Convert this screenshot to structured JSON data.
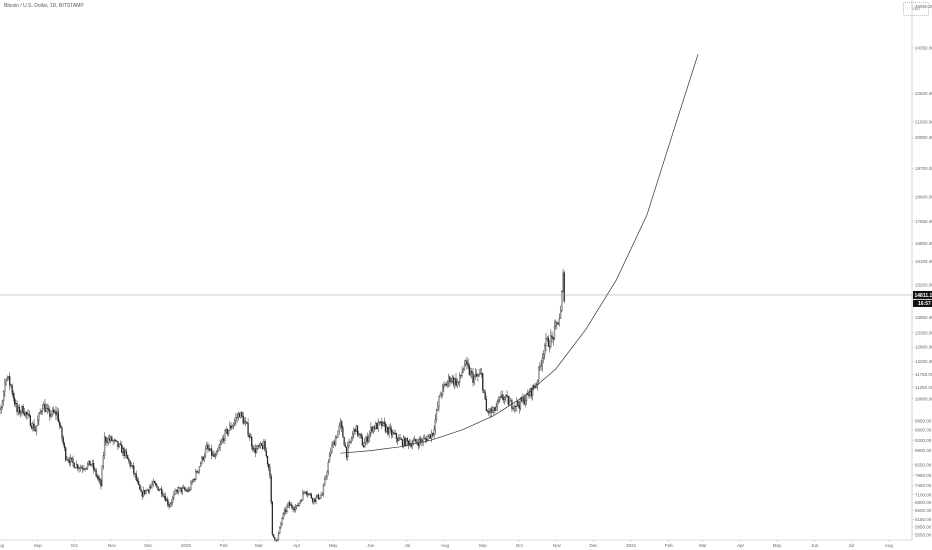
{
  "header": {
    "title": "Bitcoin / U.S. Dollar, 1D, BITSTAMP",
    "toolbox_label": "USD"
  },
  "colors": {
    "candle": "#222222",
    "curve": "#333333",
    "price_line": "#999999",
    "axis_line": "#bbbbbb",
    "tag_bg": "#111111"
  },
  "chart_data": {
    "type": "candlestick",
    "title": "Bitcoin / U.S. Dollar, 1D, BITSTAMP",
    "x_range": [
      "2019-08-01",
      "2021-08-20"
    ],
    "y_range": [
      5350,
      26200
    ],
    "current_price": "14811.15",
    "countdown": "16:57",
    "y_ticks": [
      "25950.00",
      "24350.00",
      "22600.00",
      "21500.00",
      "20900.00",
      "19700.00",
      "18600.00",
      "17650.00",
      "16800.00",
      "16100.00",
      "15200.00",
      "14650.00",
      "13950.00",
      "13350.00",
      "12800.00",
      "12250.00",
      "11750.00",
      "11250.00",
      "10800.00",
      "9950.00",
      "9600.00",
      "9200.00",
      "8800.00",
      "8250.00",
      "7850.00",
      "7450.00",
      "7100.00",
      "6800.00",
      "6500.00",
      "6150.00",
      "5850.00",
      "5550.00"
    ],
    "y_tick_values": [
      25950,
      24350,
      22600,
      21500,
      20900,
      19700,
      18600,
      17650,
      16800,
      16100,
      15200,
      14650,
      13950,
      13350,
      12800,
      12250,
      11750,
      11250,
      10800,
      9950,
      9600,
      9200,
      8800,
      8250,
      7850,
      7450,
      7100,
      6800,
      6500,
      6150,
      5850,
      5550
    ],
    "x_ticks": [
      {
        "label": "Aug",
        "date": "2019-08-01"
      },
      {
        "label": "Sep",
        "date": "2019-09-01"
      },
      {
        "label": "Oct",
        "date": "2019-10-01"
      },
      {
        "label": "Nov",
        "date": "2019-11-01"
      },
      {
        "label": "Dec",
        "date": "2019-12-01"
      },
      {
        "label": "2020",
        "date": "2020-01-01"
      },
      {
        "label": "Feb",
        "date": "2020-02-01"
      },
      {
        "label": "Mar",
        "date": "2020-03-01"
      },
      {
        "label": "Apr",
        "date": "2020-04-01"
      },
      {
        "label": "May",
        "date": "2020-05-01"
      },
      {
        "label": "Jun",
        "date": "2020-06-01"
      },
      {
        "label": "Jul",
        "date": "2020-07-01"
      },
      {
        "label": "Aug",
        "date": "2020-08-01"
      },
      {
        "label": "Sep",
        "date": "2020-09-01"
      },
      {
        "label": "Oct",
        "date": "2020-10-01"
      },
      {
        "label": "Nov",
        "date": "2020-11-01"
      },
      {
        "label": "Dec",
        "date": "2020-12-01"
      },
      {
        "label": "2021",
        "date": "2021-01-01"
      },
      {
        "label": "Feb",
        "date": "2021-02-01"
      },
      {
        "label": "Mar",
        "date": "2021-03-01"
      },
      {
        "label": "Apr",
        "date": "2021-04-01"
      },
      {
        "label": "May",
        "date": "2021-05-01"
      },
      {
        "label": "Jun",
        "date": "2021-06-01"
      },
      {
        "label": "Jul",
        "date": "2021-07-01"
      },
      {
        "label": "Aug",
        "date": "2021-08-01"
      }
    ],
    "price_path": [
      {
        "date": "2019-07-23",
        "price": 10100
      },
      {
        "date": "2019-07-27",
        "price": 9700
      },
      {
        "date": "2019-08-02",
        "price": 10500
      },
      {
        "date": "2019-08-06",
        "price": 11700
      },
      {
        "date": "2019-08-10",
        "price": 11300
      },
      {
        "date": "2019-08-15",
        "price": 10300
      },
      {
        "date": "2019-08-20",
        "price": 10400
      },
      {
        "date": "2019-08-25",
        "price": 10000
      },
      {
        "date": "2019-08-30",
        "price": 9600
      },
      {
        "date": "2019-09-05",
        "price": 10600
      },
      {
        "date": "2019-09-10",
        "price": 10200
      },
      {
        "date": "2019-09-17",
        "price": 10250
      },
      {
        "date": "2019-09-24",
        "price": 8600
      },
      {
        "date": "2019-09-30",
        "price": 8300
      },
      {
        "date": "2019-10-07",
        "price": 8150
      },
      {
        "date": "2019-10-15",
        "price": 8300
      },
      {
        "date": "2019-10-23",
        "price": 7450
      },
      {
        "date": "2019-10-26",
        "price": 9250
      },
      {
        "date": "2019-11-01",
        "price": 9200
      },
      {
        "date": "2019-11-10",
        "price": 8800
      },
      {
        "date": "2019-11-18",
        "price": 8100
      },
      {
        "date": "2019-11-25",
        "price": 7100
      },
      {
        "date": "2019-12-05",
        "price": 7500
      },
      {
        "date": "2019-12-12",
        "price": 7250
      },
      {
        "date": "2019-12-18",
        "price": 6700
      },
      {
        "date": "2019-12-25",
        "price": 7300
      },
      {
        "date": "2020-01-03",
        "price": 7250
      },
      {
        "date": "2020-01-10",
        "price": 8000
      },
      {
        "date": "2020-01-18",
        "price": 8900
      },
      {
        "date": "2020-01-25",
        "price": 8500
      },
      {
        "date": "2020-02-01",
        "price": 9350
      },
      {
        "date": "2020-02-08",
        "price": 9800
      },
      {
        "date": "2020-02-14",
        "price": 10250
      },
      {
        "date": "2020-02-20",
        "price": 9700
      },
      {
        "date": "2020-02-26",
        "price": 8800
      },
      {
        "date": "2020-03-05",
        "price": 9000
      },
      {
        "date": "2020-03-10",
        "price": 7950
      },
      {
        "date": "2020-03-12",
        "price": 5500
      },
      {
        "date": "2020-03-16",
        "price": 5350
      },
      {
        "date": "2020-03-20",
        "price": 6200
      },
      {
        "date": "2020-03-25",
        "price": 6700
      },
      {
        "date": "2020-04-01",
        "price": 6600
      },
      {
        "date": "2020-04-08",
        "price": 7300
      },
      {
        "date": "2020-04-15",
        "price": 6900
      },
      {
        "date": "2020-04-22",
        "price": 7100
      },
      {
        "date": "2020-04-29",
        "price": 8800
      },
      {
        "date": "2020-05-07",
        "price": 9800
      },
      {
        "date": "2020-05-12",
        "price": 8700
      },
      {
        "date": "2020-05-19",
        "price": 9700
      },
      {
        "date": "2020-05-26",
        "price": 9000
      },
      {
        "date": "2020-06-02",
        "price": 9700
      },
      {
        "date": "2020-06-10",
        "price": 9800
      },
      {
        "date": "2020-06-17",
        "price": 9500
      },
      {
        "date": "2020-06-26",
        "price": 9150
      },
      {
        "date": "2020-07-05",
        "price": 9100
      },
      {
        "date": "2020-07-15",
        "price": 9200
      },
      {
        "date": "2020-07-22",
        "price": 9500
      },
      {
        "date": "2020-07-28",
        "price": 11000
      },
      {
        "date": "2020-08-05",
        "price": 11600
      },
      {
        "date": "2020-08-12",
        "price": 11400
      },
      {
        "date": "2020-08-17",
        "price": 12150
      },
      {
        "date": "2020-08-24",
        "price": 11600
      },
      {
        "date": "2020-08-31",
        "price": 11700
      },
      {
        "date": "2020-09-04",
        "price": 10300
      },
      {
        "date": "2020-09-10",
        "price": 10300
      },
      {
        "date": "2020-09-17",
        "price": 10900
      },
      {
        "date": "2020-09-24",
        "price": 10600
      },
      {
        "date": "2020-10-01",
        "price": 10600
      },
      {
        "date": "2020-10-08",
        "price": 10900
      },
      {
        "date": "2020-10-15",
        "price": 11400
      },
      {
        "date": "2020-10-22",
        "price": 12900
      },
      {
        "date": "2020-10-28",
        "price": 13100
      },
      {
        "date": "2020-11-04",
        "price": 14100
      },
      {
        "date": "2020-11-06",
        "price": 15500
      },
      {
        "date": "2020-11-07",
        "price": 14811
      }
    ],
    "curve": [
      {
        "date": "2020-05-07",
        "price": 8700
      },
      {
        "date": "2020-06-01",
        "price": 8800
      },
      {
        "date": "2020-06-25",
        "price": 8950
      },
      {
        "date": "2020-07-20",
        "price": 9200
      },
      {
        "date": "2020-08-15",
        "price": 9600
      },
      {
        "date": "2020-09-10",
        "price": 10150
      },
      {
        "date": "2020-10-05",
        "price": 10900
      },
      {
        "date": "2020-10-31",
        "price": 11950
      },
      {
        "date": "2020-11-25",
        "price": 13500
      },
      {
        "date": "2020-12-20",
        "price": 15400
      },
      {
        "date": "2021-01-14",
        "price": 17900
      },
      {
        "date": "2021-02-08",
        "price": 21600
      },
      {
        "date": "2021-02-25",
        "price": 24100
      }
    ]
  }
}
